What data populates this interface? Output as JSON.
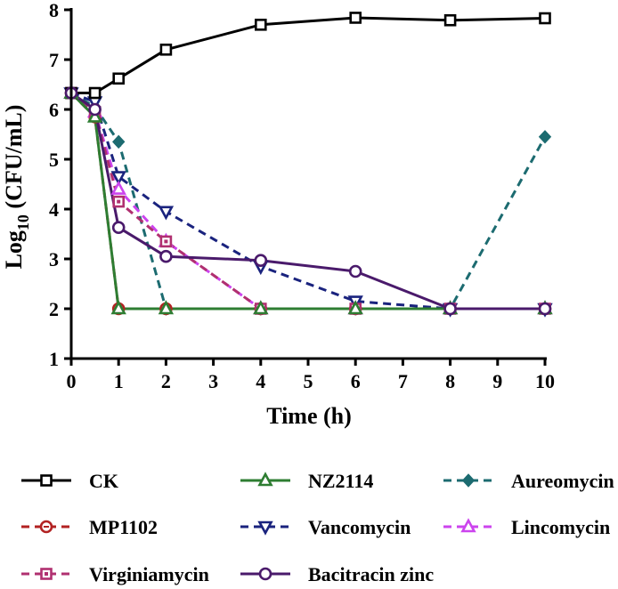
{
  "chart_data": {
    "type": "line",
    "title": "",
    "xlabel": "Time (h)",
    "ylabel_main": "Log",
    "ylabel_sub": "10",
    "ylabel_rest": " (CFU/mL)",
    "xlim": [
      0,
      10
    ],
    "ylim": [
      1,
      8
    ],
    "xticks": [
      0,
      1,
      2,
      3,
      4,
      5,
      6,
      7,
      8,
      9,
      10
    ],
    "yticks": [
      1,
      2,
      3,
      4,
      5,
      6,
      7,
      8
    ],
    "legend_position": "bottom",
    "series": [
      {
        "name": "CK",
        "color": "#000000",
        "marker": "square",
        "dashed": false,
        "x": [
          0,
          0.5,
          1,
          2,
          4,
          6,
          8,
          10
        ],
        "y": [
          6.33,
          6.33,
          6.62,
          7.2,
          7.7,
          7.84,
          7.79,
          7.83
        ]
      },
      {
        "name": "NZ2114",
        "color": "#2e7d32",
        "marker": "triangle-up",
        "dashed": false,
        "x": [
          0,
          0.5,
          1,
          2,
          4,
          6,
          8,
          10
        ],
        "y": [
          6.33,
          5.85,
          2.0,
          2.0,
          2.0,
          2.0,
          2.0,
          2.0
        ]
      },
      {
        "name": "Aureomycin",
        "color": "#1c6b70",
        "marker": "diamond",
        "dashed": true,
        "x": [
          0,
          0.5,
          1,
          2,
          4,
          6,
          8,
          10
        ],
        "y": [
          6.33,
          6.05,
          5.35,
          2.0,
          2.0,
          2.0,
          2.0,
          5.45
        ]
      },
      {
        "name": "MP1102",
        "color": "#b22222",
        "marker": "circle-dot",
        "dashed": true,
        "x": [
          0,
          0.5,
          1,
          2,
          4,
          6,
          8,
          10
        ],
        "y": [
          6.33,
          5.85,
          2.0,
          2.0,
          2.0,
          2.0,
          2.0,
          2.0
        ]
      },
      {
        "name": "Vancomycin",
        "color": "#1a237e",
        "marker": "triangle-down",
        "dashed": true,
        "x": [
          0,
          0.5,
          1,
          2,
          4,
          6,
          8,
          10
        ],
        "y": [
          6.33,
          6.15,
          4.65,
          3.95,
          2.85,
          2.15,
          2.0,
          2.0
        ]
      },
      {
        "name": "Lincomycin",
        "color": "#cc44ee",
        "marker": "triangle-up",
        "dashed": true,
        "x": [
          0,
          0.5,
          1,
          2,
          4,
          6,
          8,
          10
        ],
        "y": [
          6.33,
          5.95,
          4.4,
          3.35,
          2.0,
          2.0,
          2.0,
          2.0
        ]
      },
      {
        "name": "Virginiamycin",
        "color": "#b03070",
        "marker": "square-dot",
        "dashed": true,
        "x": [
          0,
          0.5,
          1,
          2,
          4,
          6,
          8,
          10
        ],
        "y": [
          6.33,
          5.95,
          4.15,
          3.35,
          2.0,
          2.0,
          2.0,
          2.0
        ]
      },
      {
        "name": "Bacitracin zinc",
        "color": "#4a1a6b",
        "marker": "circle",
        "dashed": false,
        "x": [
          0,
          0.5,
          1,
          2,
          4,
          6,
          8,
          10
        ],
        "y": [
          6.33,
          6.0,
          3.63,
          3.05,
          2.97,
          2.75,
          2.0,
          2.0
        ]
      }
    ]
  }
}
